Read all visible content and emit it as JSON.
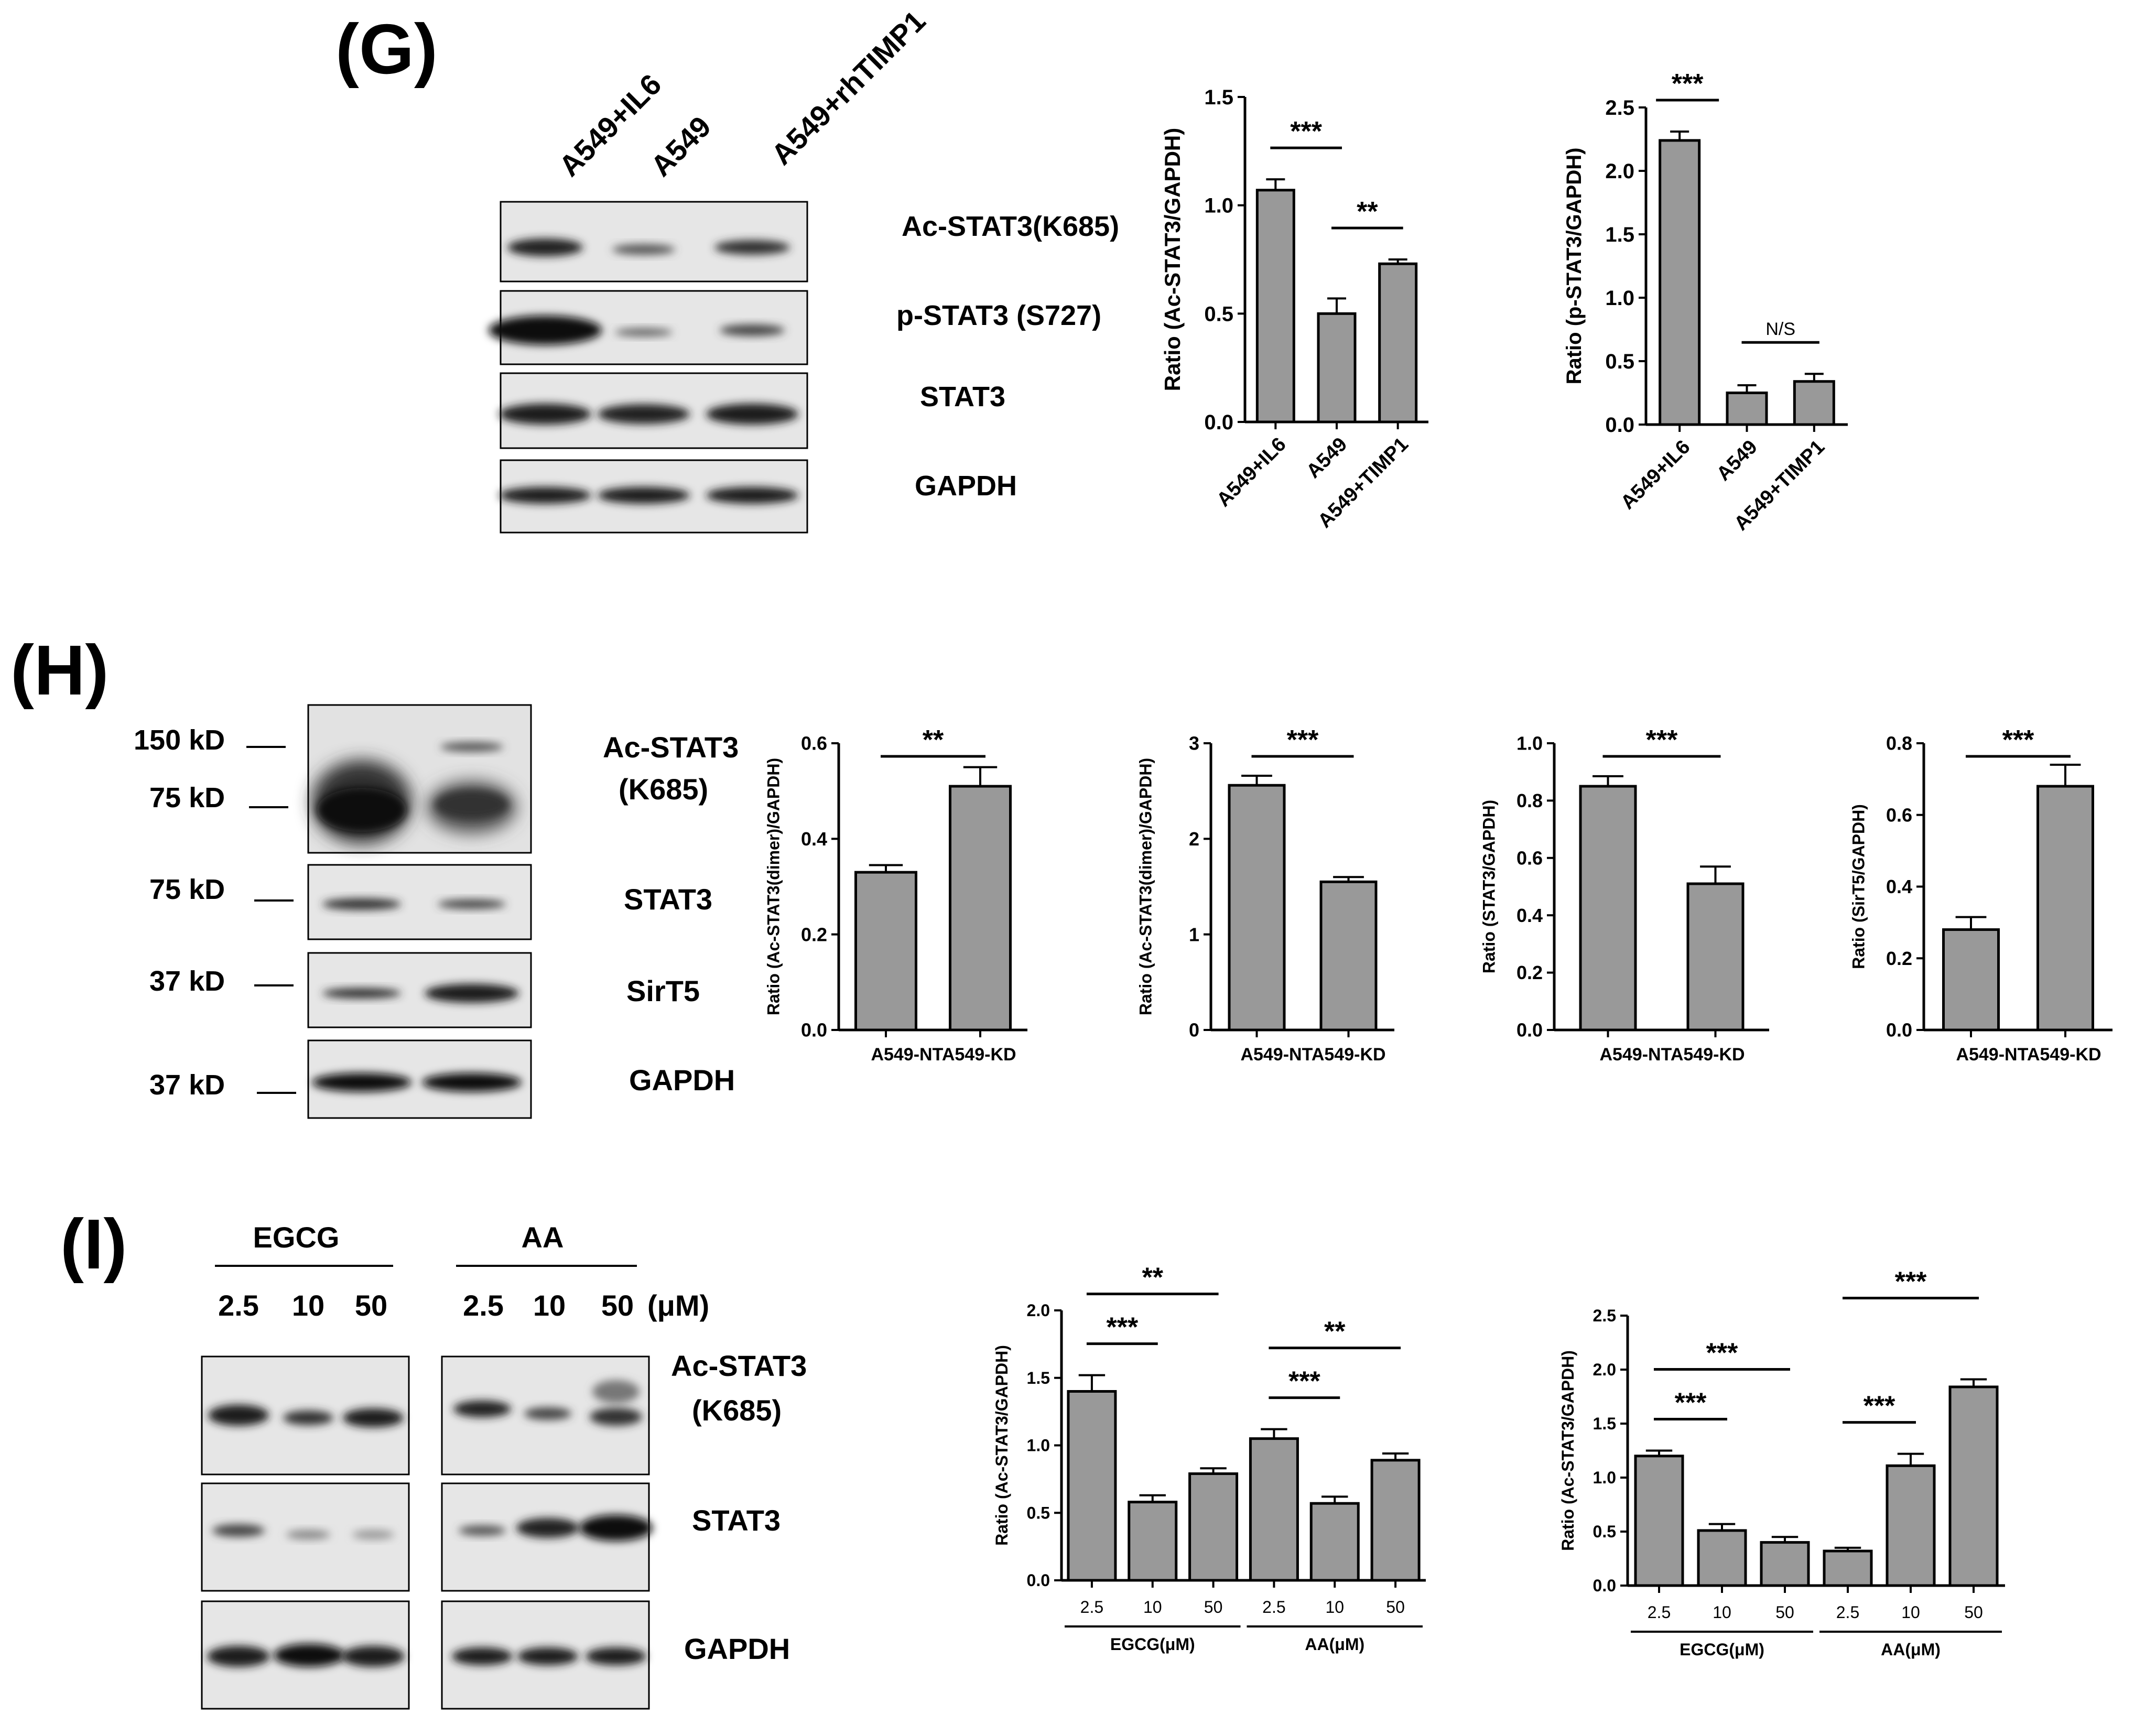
{
  "panels": {
    "g": "(G)",
    "h": "(H)",
    "i": "(I)"
  },
  "blot_g": {
    "lanes": [
      "A549+IL6",
      "A549",
      "A549+rhTIMP1"
    ],
    "bands": [
      "Ac-STAT3(K685)",
      "p-STAT3 (S727)",
      "STAT3",
      "GAPDH"
    ]
  },
  "blot_h": {
    "markers": [
      "150 kD",
      "75 kD",
      "75 kD",
      "37 kD",
      "37 kD"
    ],
    "bands": [
      "Ac-STAT3",
      "(K685)",
      "STAT3",
      "SirT5",
      "GAPDH"
    ]
  },
  "blot_i": {
    "groups": [
      "EGCG",
      "AA"
    ],
    "doses": [
      "2.5",
      "10",
      "50",
      "2.5",
      "10",
      "50"
    ],
    "unit": "(μM)",
    "bands": [
      "Ac-STAT3",
      "(K685)",
      "STAT3",
      "GAPDH"
    ]
  },
  "colors": {
    "bar": "#999999",
    "ink": "#000000",
    "blot_bg": "#e6e6e6"
  },
  "chart_data": [
    {
      "id": "G1",
      "type": "bar",
      "categories": [
        "A549+IL6",
        "A549",
        "A549+TIMP1"
      ],
      "values": [
        1.07,
        0.5,
        0.73
      ],
      "errors": [
        0.05,
        0.07,
        0.02
      ],
      "ylabel": "Ratio (Ac-STAT3/GAPDH)",
      "ylim": [
        0,
        1.5
      ],
      "yticks": [
        "0.0",
        "0.5",
        "1.0",
        "1.5"
      ],
      "annotations": [
        {
          "text": "***",
          "from": 0,
          "to": 1
        },
        {
          "text": "**",
          "from": 1,
          "to": 2
        }
      ]
    },
    {
      "id": "G2",
      "type": "bar",
      "categories": [
        "A549+IL6",
        "A549",
        "A549+TIMP1"
      ],
      "values": [
        2.24,
        0.25,
        0.34
      ],
      "errors": [
        0.07,
        0.06,
        0.06
      ],
      "ylabel": "Ratio (p-STAT3/GAPDH)",
      "ylim": [
        0,
        2.5
      ],
      "yticks": [
        "0.0",
        "0.5",
        "1.0",
        "1.5",
        "2.0",
        "2.5"
      ],
      "annotations": [
        {
          "text": "***",
          "from": 0,
          "to": 0
        },
        {
          "text": "N/S",
          "from": 1,
          "to": 2
        }
      ]
    },
    {
      "id": "H1",
      "type": "bar",
      "categories": [
        "A549-NT",
        "A549-KD"
      ],
      "xlabel_text": "A549-NTA549-KD",
      "values": [
        0.33,
        0.51
      ],
      "errors": [
        0.015,
        0.04
      ],
      "ylabel": "Ratio (Ac-STAT3(dimer)/GAPDH)",
      "ylim": [
        0,
        0.6
      ],
      "yticks": [
        "0.0",
        "0.2",
        "0.4",
        "0.6"
      ],
      "annotations": [
        {
          "text": "**",
          "from": 0,
          "to": 1
        }
      ]
    },
    {
      "id": "H2",
      "type": "bar",
      "categories": [
        "A549-NT",
        "A549-KD"
      ],
      "xlabel_text": "A549-NTA549-KD",
      "values": [
        2.56,
        1.55
      ],
      "errors": [
        0.1,
        0.05
      ],
      "ylabel": "Ratio (Ac-STAT3(dimer)/GAPDH)",
      "ylim": [
        0,
        3
      ],
      "yticks": [
        "0",
        "1",
        "2",
        "3"
      ],
      "annotations": [
        {
          "text": "***",
          "from": 0,
          "to": 1
        }
      ]
    },
    {
      "id": "H3",
      "type": "bar",
      "categories": [
        "A549-NT",
        "A549-KD"
      ],
      "xlabel_text": "A549-NTA549-KD",
      "values": [
        0.85,
        0.51
      ],
      "errors": [
        0.035,
        0.06
      ],
      "ylabel": "Ratio (STAT3/GAPDH)",
      "ylim": [
        0,
        1.0
      ],
      "yticks": [
        "0.0",
        "0.2",
        "0.4",
        "0.6",
        "0.8",
        "1.0"
      ],
      "annotations": [
        {
          "text": "***",
          "from": 0,
          "to": 1
        }
      ]
    },
    {
      "id": "H4",
      "type": "bar",
      "categories": [
        "A549-NT",
        "A549-KD"
      ],
      "xlabel_text": "A549-NTA549-KD",
      "values": [
        0.28,
        0.68
      ],
      "errors": [
        0.035,
        0.06
      ],
      "ylabel": "Ratio (SirT5/GAPDH)",
      "ylim": [
        0,
        0.8
      ],
      "yticks": [
        "0.0",
        "0.2",
        "0.4",
        "0.6",
        "0.8"
      ],
      "annotations": [
        {
          "text": "***",
          "from": 0,
          "to": 1
        }
      ]
    },
    {
      "id": "I1",
      "type": "bar",
      "categories": [
        "2.5",
        "10",
        "50",
        "2.5",
        "10",
        "50"
      ],
      "groups": [
        {
          "label": "EGCG(μM)",
          "from": 0,
          "to": 2
        },
        {
          "label": "AA(μM)",
          "from": 3,
          "to": 5
        }
      ],
      "values": [
        1.4,
        0.58,
        0.79,
        1.05,
        0.57,
        0.89
      ],
      "errors": [
        0.12,
        0.05,
        0.04,
        0.07,
        0.05,
        0.05
      ],
      "ylabel": "Ratio (Ac-STAT3/GAPDH)",
      "ylim": [
        0,
        2.0
      ],
      "yticks": [
        "0.0",
        "0.5",
        "1.0",
        "1.5",
        "2.0"
      ],
      "annotations": [
        {
          "text": "***",
          "from": 0,
          "to": 1
        },
        {
          "text": "**",
          "from": 0,
          "to": 2
        },
        {
          "text": "***",
          "from": 3,
          "to": 4
        },
        {
          "text": "**",
          "from": 3,
          "to": 5
        }
      ]
    },
    {
      "id": "I2",
      "type": "bar",
      "categories": [
        "2.5",
        "10",
        "50",
        "2.5",
        "10",
        "50"
      ],
      "groups": [
        {
          "label": "EGCG(μM)",
          "from": 0,
          "to": 2
        },
        {
          "label": "AA(μM)",
          "from": 3,
          "to": 5
        }
      ],
      "values": [
        1.2,
        0.51,
        0.4,
        0.32,
        1.11,
        1.84
      ],
      "errors": [
        0.05,
        0.06,
        0.05,
        0.03,
        0.11,
        0.07
      ],
      "ylabel": "Ratio (Ac-STAT3/GAPDH)",
      "ylim": [
        0,
        2.5
      ],
      "yticks": [
        "0.0",
        "0.5",
        "1.0",
        "1.5",
        "2.0",
        "2.5"
      ],
      "annotations": [
        {
          "text": "***",
          "from": 0,
          "to": 1
        },
        {
          "text": "***",
          "from": 0,
          "to": 2
        },
        {
          "text": "***",
          "from": 3,
          "to": 4
        },
        {
          "text": "***",
          "from": 3,
          "to": 5
        }
      ]
    }
  ]
}
